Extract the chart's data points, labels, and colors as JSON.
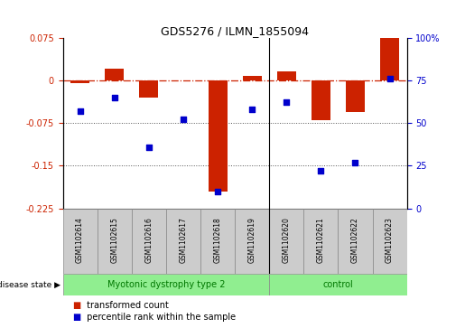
{
  "title": "GDS5276 / ILMN_1855094",
  "samples": [
    "GSM1102614",
    "GSM1102615",
    "GSM1102616",
    "GSM1102617",
    "GSM1102618",
    "GSM1102619",
    "GSM1102620",
    "GSM1102621",
    "GSM1102622",
    "GSM1102623"
  ],
  "transformed_count": [
    -0.005,
    0.02,
    -0.03,
    0.0,
    -0.195,
    0.008,
    0.015,
    -0.07,
    -0.055,
    0.075
  ],
  "percentile_rank": [
    57,
    65,
    36,
    52,
    10,
    58,
    62,
    22,
    27,
    76
  ],
  "group_split": 6,
  "group1_label": "Myotonic dystrophy type 2",
  "group2_label": "control",
  "group_color": "#90EE90",
  "ylim_left": [
    -0.225,
    0.075
  ],
  "ylim_right": [
    0,
    100
  ],
  "yticks_left": [
    0.075,
    0.0,
    -0.075,
    -0.15,
    -0.225
  ],
  "yticks_right": [
    100,
    75,
    50,
    25,
    0
  ],
  "bar_color": "#CC2200",
  "dot_color": "#0000CC",
  "hline_color": "#CC2200",
  "dotted_line_color": "#555555",
  "disease_state_label": "disease state",
  "legend_bar_label": "transformed count",
  "legend_dot_label": "percentile rank within the sample",
  "sample_box_color": "#CCCCCC",
  "group_label_color": "#007700",
  "title_fontsize": 9,
  "tick_fontsize": 7,
  "label_fontsize": 7
}
